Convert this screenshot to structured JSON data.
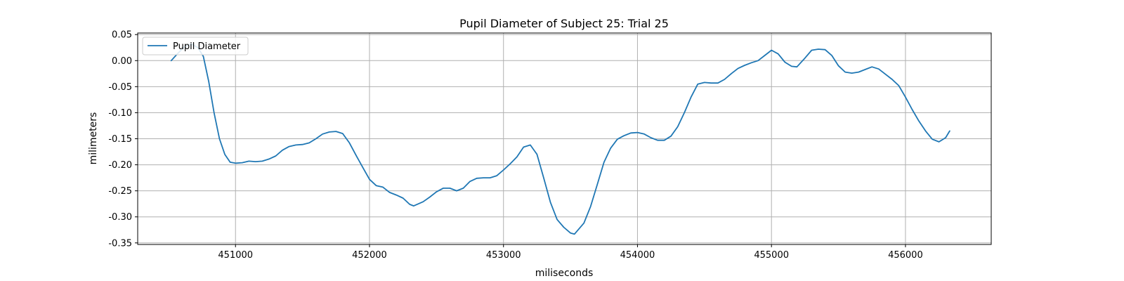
{
  "chart_data": {
    "type": "line",
    "title": "Pupil Diameter of Subject 25: Trial 25",
    "xlabel": "miliseconds",
    "ylabel": "milimeters",
    "xlim": [
      450270,
      456640
    ],
    "ylim": [
      -0.353,
      0.053
    ],
    "xticks": [
      451000,
      452000,
      453000,
      454000,
      455000,
      456000
    ],
    "yticks": [
      0.05,
      0.0,
      -0.05,
      -0.1,
      -0.15,
      -0.2,
      -0.25,
      -0.3,
      -0.35
    ],
    "grid": true,
    "legend_position": "top-left",
    "series": [
      {
        "name": "Pupil Diameter",
        "color": "#1f77b4",
        "x": [
          450520,
          450570,
          450620,
          450670,
          450720,
          450760,
          450800,
          450840,
          450880,
          450920,
          450960,
          451000,
          451050,
          451100,
          451150,
          451200,
          451250,
          451300,
          451350,
          451400,
          451450,
          451500,
          451550,
          451600,
          451650,
          451700,
          451750,
          451800,
          451850,
          451900,
          451950,
          452000,
          452050,
          452100,
          452150,
          452200,
          452250,
          452300,
          452330,
          452400,
          452450,
          452500,
          452550,
          452600,
          452650,
          452700,
          452750,
          452800,
          452850,
          452900,
          452950,
          453000,
          453050,
          453100,
          453150,
          453200,
          453250,
          453300,
          453350,
          453400,
          453450,
          453500,
          453530,
          453600,
          453650,
          453700,
          453750,
          453800,
          453850,
          453900,
          453950,
          454000,
          454050,
          454100,
          454150,
          454200,
          454250,
          454300,
          454350,
          454400,
          454450,
          454500,
          454550,
          454600,
          454650,
          454700,
          454750,
          454800,
          454850,
          454900,
          454950,
          455000,
          455050,
          455100,
          455150,
          455190,
          455250,
          455300,
          455350,
          455400,
          455450,
          455500,
          455550,
          455600,
          455650,
          455700,
          455750,
          455800,
          455850,
          455900,
          455950,
          456000,
          456050,
          456100,
          456150,
          456200,
          456250,
          456300,
          456330
        ],
        "y": [
          0.0,
          0.014,
          0.027,
          0.032,
          0.025,
          0.008,
          -0.04,
          -0.1,
          -0.15,
          -0.18,
          -0.195,
          -0.197,
          -0.196,
          -0.193,
          -0.194,
          -0.193,
          -0.189,
          -0.183,
          -0.172,
          -0.165,
          -0.162,
          -0.161,
          -0.158,
          -0.15,
          -0.141,
          -0.137,
          -0.136,
          -0.14,
          -0.158,
          -0.182,
          -0.205,
          -0.228,
          -0.24,
          -0.243,
          -0.253,
          -0.258,
          -0.264,
          -0.276,
          -0.279,
          -0.271,
          -0.262,
          -0.252,
          -0.245,
          -0.245,
          -0.25,
          -0.245,
          -0.232,
          -0.226,
          -0.225,
          -0.225,
          -0.221,
          -0.21,
          -0.198,
          -0.185,
          -0.166,
          -0.162,
          -0.18,
          -0.225,
          -0.272,
          -0.305,
          -0.32,
          -0.331,
          -0.333,
          -0.312,
          -0.28,
          -0.238,
          -0.195,
          -0.168,
          -0.151,
          -0.144,
          -0.139,
          -0.138,
          -0.141,
          -0.148,
          -0.153,
          -0.153,
          -0.145,
          -0.127,
          -0.1,
          -0.07,
          -0.045,
          -0.042,
          -0.043,
          -0.043,
          -0.036,
          -0.025,
          -0.015,
          -0.009,
          -0.004,
          0.0,
          0.01,
          0.02,
          0.013,
          -0.003,
          -0.011,
          -0.012,
          0.005,
          0.02,
          0.022,
          0.021,
          0.01,
          -0.01,
          -0.022,
          -0.024,
          -0.022,
          -0.017,
          -0.012,
          -0.016,
          -0.026,
          -0.036,
          -0.048,
          -0.07,
          -0.094,
          -0.116,
          -0.135,
          -0.151,
          -0.156,
          -0.148,
          -0.135
        ]
      }
    ]
  }
}
